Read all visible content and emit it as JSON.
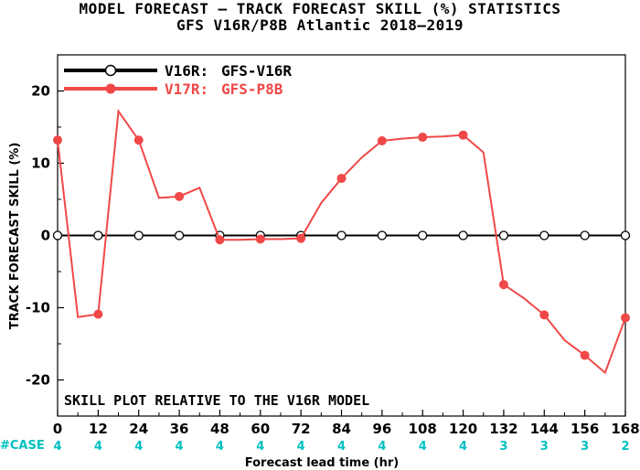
{
  "chart_data": {
    "type": "line",
    "title": "MODEL FORECAST – TRACK FORECAST SKILL (%) STATISTICS",
    "subtitle": "GFS V16R/P8B Atlantic 2018–2019",
    "xlabel": "Forecast lead time (hr)",
    "ylabel": "TRACK FORECAST SKILL (%)",
    "xlim": [
      0,
      168
    ],
    "ylim": [
      -25,
      25
    ],
    "xticks": [
      0,
      12,
      24,
      36,
      48,
      60,
      72,
      84,
      96,
      108,
      120,
      132,
      144,
      156,
      168
    ],
    "yticks": [
      -20,
      -10,
      0,
      10,
      20
    ],
    "grid": false,
    "legend_position": "top-left",
    "annotation": "SKILL PLOT RELATIVE TO THE V16R MODEL",
    "case_label": "#CASE",
    "cases": [
      "4",
      "4",
      "4",
      "4",
      "4",
      "4",
      "4",
      "4",
      "4",
      "4",
      "4",
      "3",
      "3",
      "3",
      "2"
    ],
    "series": [
      {
        "name": "V16R: GFS-V16R",
        "legend_key": "V16R:",
        "legend_text": "GFS-V16R",
        "color": "#000000",
        "marker": "open-circle",
        "x": [
          0,
          12,
          24,
          36,
          48,
          60,
          72,
          84,
          96,
          108,
          120,
          132,
          144,
          156,
          168
        ],
        "y": [
          0,
          0,
          0,
          0,
          0,
          0,
          0,
          0,
          0,
          0,
          0,
          0,
          0,
          0,
          0
        ]
      },
      {
        "name": "V17R: GFS-P8B",
        "legend_key": "V17R:",
        "legend_text": "GFS-P8B",
        "color": "#f04848",
        "marker": "filled-circle",
        "x": [
          0,
          6,
          12,
          18,
          24,
          30,
          36,
          42,
          48,
          54,
          60,
          66,
          72,
          78,
          84,
          90,
          96,
          102,
          108,
          114,
          120,
          126,
          132,
          138,
          144,
          150,
          156,
          162,
          168
        ],
        "y": [
          13.2,
          -11.3,
          -10.9,
          17.2,
          13.2,
          5.2,
          5.4,
          6.6,
          -0.6,
          -0.6,
          -0.5,
          -0.5,
          -0.4,
          4.5,
          7.9,
          10.8,
          13.1,
          13.4,
          13.6,
          13.7,
          13.9,
          11.5,
          -6.8,
          -8.7,
          -11.0,
          -14.5,
          -16.6,
          -19.0,
          -11.4
        ],
        "marker_x": [
          0,
          12,
          24,
          36,
          48,
          60,
          72,
          84,
          96,
          108,
          120,
          132,
          144,
          156,
          168
        ]
      }
    ]
  },
  "colors": {
    "case": "#00c0c0",
    "red": "#f04848",
    "black": "#000000"
  }
}
